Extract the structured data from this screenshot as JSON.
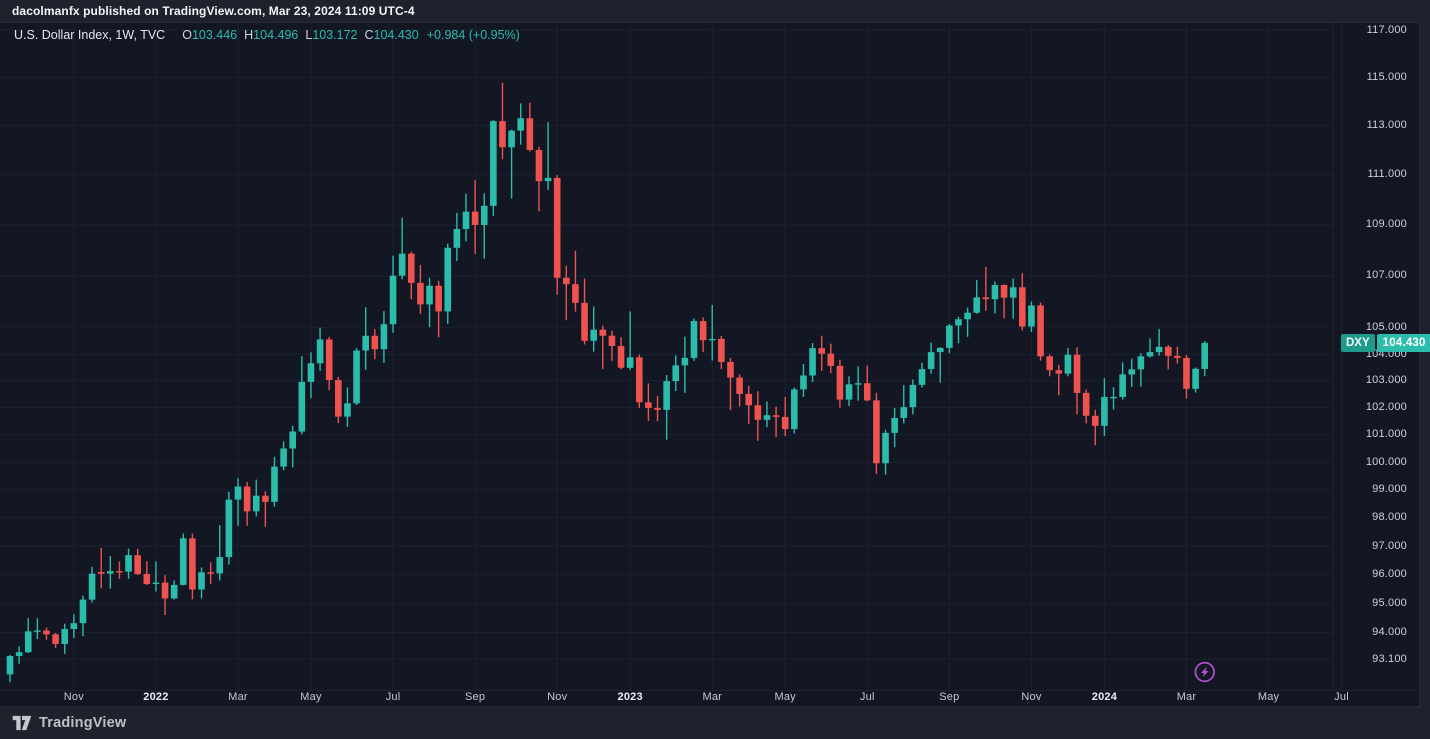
{
  "header": {
    "published_line": "dacolmanfx published on TradingView.com, Mar 23, 2024 11:09 UTC-4"
  },
  "legend": {
    "symbol_title": "U.S. Dollar Index, 1W, TVC",
    "ohlc_items": [
      {
        "label": "O",
        "value": "103.446"
      },
      {
        "label": "H",
        "value": "104.496"
      },
      {
        "label": "L",
        "value": "103.172"
      },
      {
        "label": "C",
        "value": "104.430"
      }
    ],
    "change": "+0.984 (+0.95%)"
  },
  "price_axis": {
    "labels": [
      "117.000",
      "115.000",
      "113.000",
      "111.000",
      "109.000",
      "107.000",
      "105.000",
      "104.000",
      "103.000",
      "102.000",
      "101.000",
      "100.000",
      "99.000",
      "98.000",
      "97.000",
      "96.000",
      "95.000",
      "94.000",
      "93.100"
    ],
    "last_price_label": {
      "symbol": "DXY",
      "value": "104.430"
    }
  },
  "time_axis": {
    "ticks": [
      {
        "label": "Nov",
        "bar": 7,
        "year": false
      },
      {
        "label": "2022",
        "bar": 16,
        "year": true
      },
      {
        "label": "Mar",
        "bar": 25,
        "year": false
      },
      {
        "label": "May",
        "bar": 33,
        "year": false
      },
      {
        "label": "Jul",
        "bar": 42,
        "year": false
      },
      {
        "label": "Sep",
        "bar": 51,
        "year": false
      },
      {
        "label": "Nov",
        "bar": 60,
        "year": false
      },
      {
        "label": "2023",
        "bar": 68,
        "year": true
      },
      {
        "label": "Mar",
        "bar": 77,
        "year": false
      },
      {
        "label": "May",
        "bar": 85,
        "year": false
      },
      {
        "label": "Jul",
        "bar": 94,
        "year": false
      },
      {
        "label": "Sep",
        "bar": 103,
        "year": false
      },
      {
        "label": "Nov",
        "bar": 112,
        "year": false
      },
      {
        "label": "2024",
        "bar": 120,
        "year": true
      },
      {
        "label": "Mar",
        "bar": 129,
        "year": false
      },
      {
        "label": "May",
        "bar": 138,
        "year": false
      },
      {
        "label": "Jul",
        "bar": 146,
        "year": false
      }
    ]
  },
  "footer": {
    "brand": "TradingView"
  },
  "colors": {
    "up": "#2cbcab",
    "down": "#ef5350",
    "accent": "#2cbcab",
    "flash_icon": "#b750d8",
    "grid": "#1b2030"
  },
  "chart_data": {
    "type": "candlestick",
    "title": "U.S. Dollar Index",
    "symbol": "DXY",
    "exchange": "TVC",
    "timeframe": "1W",
    "scale": "logarithmic",
    "grid": true,
    "ylim": [
      92.2,
      117.3
    ],
    "y_ticks": [
      117,
      115,
      113,
      111,
      109,
      107,
      105,
      104,
      103,
      102,
      101,
      100,
      99,
      98,
      97,
      96,
      95,
      94,
      93.1
    ],
    "x_ticks": [
      "Nov 2021",
      "2022",
      "Mar",
      "May",
      "Jul",
      "Sep",
      "Nov",
      "2023",
      "Mar",
      "May",
      "Jul",
      "Sep",
      "Nov",
      "2024",
      "Mar",
      "May",
      "Jul"
    ],
    "last_bar_ohlc": {
      "open": 103.446,
      "high": 104.496,
      "low": 103.172,
      "close": 104.43,
      "change": 0.984,
      "change_pct": 0.95
    },
    "candles": [
      [
        "2021-09-13",
        92.58,
        93.24,
        92.32,
        93.2
      ],
      [
        "2021-09-20",
        93.2,
        93.53,
        92.94,
        93.33
      ],
      [
        "2021-09-27",
        93.33,
        94.5,
        93.3,
        94.04
      ],
      [
        "2021-10-04",
        94.04,
        94.49,
        93.78,
        94.07
      ],
      [
        "2021-10-11",
        94.07,
        94.17,
        93.75,
        93.94
      ],
      [
        "2021-10-18",
        93.94,
        93.99,
        93.48,
        93.61
      ],
      [
        "2021-10-25",
        93.61,
        94.3,
        93.27,
        94.12
      ],
      [
        "2021-11-01",
        94.12,
        94.63,
        93.81,
        94.32
      ],
      [
        "2021-11-08",
        94.32,
        95.27,
        93.87,
        95.13
      ],
      [
        "2021-11-15",
        95.13,
        96.27,
        95.03,
        96.03
      ],
      [
        "2021-11-22",
        96.09,
        96.94,
        95.52,
        96.03
      ],
      [
        "2021-11-29",
        96.03,
        96.65,
        95.51,
        96.12
      ],
      [
        "2021-12-06",
        96.12,
        96.46,
        95.85,
        96.1
      ],
      [
        "2021-12-13",
        96.1,
        96.91,
        95.85,
        96.68
      ],
      [
        "2021-12-20",
        96.68,
        96.9,
        95.98,
        96.02
      ],
      [
        "2021-12-27",
        96.02,
        96.47,
        95.64,
        95.67
      ],
      [
        "2022-01-03",
        95.67,
        96.46,
        95.41,
        95.72
      ],
      [
        "2022-01-10",
        95.72,
        95.98,
        94.6,
        95.17
      ],
      [
        "2022-01-17",
        95.17,
        95.8,
        95.13,
        95.64
      ],
      [
        "2022-01-24",
        95.64,
        97.44,
        95.62,
        97.27
      ],
      [
        "2022-01-31",
        97.27,
        97.44,
        95.14,
        95.48
      ],
      [
        "2022-02-07",
        95.48,
        96.25,
        95.17,
        96.08
      ],
      [
        "2022-02-14",
        96.08,
        96.43,
        95.67,
        96.04
      ],
      [
        "2022-02-21",
        96.04,
        97.74,
        95.8,
        96.61
      ],
      [
        "2022-02-28",
        96.61,
        98.94,
        96.35,
        98.65
      ],
      [
        "2022-03-07",
        98.65,
        99.42,
        97.71,
        99.12
      ],
      [
        "2022-03-14",
        99.12,
        99.29,
        97.72,
        98.23
      ],
      [
        "2022-03-21",
        98.23,
        99.37,
        98.05,
        98.79
      ],
      [
        "2022-03-28",
        98.79,
        98.95,
        97.68,
        98.57
      ],
      [
        "2022-04-04",
        98.57,
        100.19,
        98.4,
        99.84
      ],
      [
        "2022-04-11",
        99.84,
        100.76,
        99.71,
        100.5
      ],
      [
        "2022-04-18",
        100.5,
        101.33,
        99.81,
        101.12
      ],
      [
        "2022-04-25",
        101.12,
        103.93,
        101.02,
        102.96
      ],
      [
        "2022-05-02",
        102.96,
        104.07,
        102.35,
        103.66
      ],
      [
        "2022-05-09",
        103.66,
        105.01,
        103.37,
        104.56
      ],
      [
        "2022-05-16",
        104.56,
        104.66,
        102.65,
        103.03
      ],
      [
        "2022-05-23",
        103.03,
        103.15,
        101.43,
        101.67
      ],
      [
        "2022-05-30",
        101.67,
        102.75,
        101.29,
        102.16
      ],
      [
        "2022-06-06",
        102.16,
        104.23,
        102.1,
        104.14
      ],
      [
        "2022-06-13",
        104.14,
        105.79,
        103.41,
        104.7
      ],
      [
        "2022-06-20",
        104.7,
        104.95,
        103.81,
        104.19
      ],
      [
        "2022-06-27",
        104.19,
        105.64,
        103.67,
        105.14
      ],
      [
        "2022-07-04",
        105.14,
        107.79,
        104.81,
        107.01
      ],
      [
        "2022-07-11",
        107.01,
        109.29,
        106.87,
        107.87
      ],
      [
        "2022-07-18",
        107.87,
        107.95,
        106.1,
        106.73
      ],
      [
        "2022-07-25",
        106.73,
        107.43,
        105.53,
        105.9
      ],
      [
        "2022-08-01",
        105.9,
        106.93,
        105.03,
        106.62
      ],
      [
        "2022-08-08",
        106.62,
        106.81,
        104.64,
        105.63
      ],
      [
        "2022-08-15",
        105.63,
        108.26,
        105.15,
        108.1
      ],
      [
        "2022-08-22",
        108.1,
        109.48,
        107.58,
        108.84
      ],
      [
        "2022-08-29",
        108.84,
        110.25,
        108.35,
        109.53
      ],
      [
        "2022-09-05",
        109.53,
        110.79,
        107.86,
        109.0
      ],
      [
        "2022-09-12",
        109.0,
        110.26,
        107.67,
        109.76
      ],
      [
        "2022-09-19",
        109.76,
        113.23,
        109.36,
        113.19
      ],
      [
        "2022-09-26",
        113.19,
        114.78,
        111.64,
        112.12
      ],
      [
        "2022-10-03",
        112.12,
        112.84,
        110.05,
        112.8
      ],
      [
        "2022-10-10",
        112.8,
        113.92,
        112.23,
        113.31
      ],
      [
        "2022-10-17",
        113.31,
        113.95,
        111.95,
        112.01
      ],
      [
        "2022-10-24",
        112.01,
        112.14,
        109.54,
        110.75
      ],
      [
        "2022-10-31",
        110.75,
        113.15,
        110.4,
        110.88
      ],
      [
        "2022-11-07",
        110.88,
        110.99,
        106.27,
        106.93
      ],
      [
        "2022-11-14",
        106.93,
        107.4,
        105.3,
        106.68
      ],
      [
        "2022-11-21",
        106.68,
        107.99,
        105.62,
        105.96
      ],
      [
        "2022-11-28",
        105.96,
        106.9,
        104.37,
        104.51
      ],
      [
        "2022-12-05",
        104.51,
        105.82,
        104.1,
        104.93
      ],
      [
        "2022-12-12",
        104.93,
        105.09,
        103.44,
        104.7
      ],
      [
        "2022-12-19",
        104.7,
        104.89,
        103.75,
        104.31
      ],
      [
        "2022-12-26",
        104.31,
        104.64,
        103.43,
        103.49
      ],
      [
        "2023-01-02",
        103.49,
        105.63,
        103.41,
        103.88
      ],
      [
        "2023-01-09",
        103.88,
        103.99,
        101.99,
        102.2
      ],
      [
        "2023-01-16",
        102.2,
        102.9,
        101.51,
        101.99
      ],
      [
        "2023-01-23",
        101.99,
        102.43,
        101.5,
        101.92
      ],
      [
        "2023-01-30",
        101.92,
        103.22,
        100.82,
        102.99
      ],
      [
        "2023-02-06",
        102.99,
        103.96,
        102.62,
        103.58
      ],
      [
        "2023-02-13",
        103.58,
        104.67,
        102.55,
        103.86
      ],
      [
        "2023-02-20",
        103.86,
        105.36,
        103.75,
        105.26
      ],
      [
        "2023-02-27",
        105.26,
        105.4,
        104.09,
        104.53
      ],
      [
        "2023-03-06",
        104.53,
        105.88,
        103.76,
        104.58
      ],
      [
        "2023-03-13",
        104.58,
        104.69,
        103.44,
        103.71
      ],
      [
        "2023-03-20",
        103.71,
        103.86,
        101.91,
        103.12
      ],
      [
        "2023-03-27",
        103.12,
        103.24,
        102.04,
        102.51
      ],
      [
        "2023-04-03",
        102.51,
        102.81,
        101.4,
        102.09
      ],
      [
        "2023-04-10",
        102.09,
        102.61,
        100.78,
        101.55
      ],
      [
        "2023-04-17",
        101.55,
        102.23,
        101.28,
        101.72
      ],
      [
        "2023-04-24",
        101.72,
        102.04,
        100.92,
        101.66
      ],
      [
        "2023-05-01",
        101.66,
        102.4,
        100.95,
        101.21
      ],
      [
        "2023-05-08",
        101.21,
        102.75,
        101.05,
        102.68
      ],
      [
        "2023-05-15",
        102.68,
        103.63,
        102.4,
        103.2
      ],
      [
        "2023-05-22",
        103.2,
        104.42,
        102.95,
        104.23
      ],
      [
        "2023-05-29",
        104.23,
        104.7,
        103.37,
        104.02
      ],
      [
        "2023-06-05",
        104.02,
        104.4,
        103.29,
        103.56
      ],
      [
        "2023-06-12",
        103.56,
        103.79,
        102.0,
        102.3
      ],
      [
        "2023-06-19",
        102.3,
        103.17,
        102.06,
        102.87
      ],
      [
        "2023-06-26",
        102.87,
        103.54,
        102.26,
        102.91
      ],
      [
        "2023-07-03",
        102.91,
        103.57,
        102.24,
        102.27
      ],
      [
        "2023-07-10",
        102.27,
        102.55,
        99.57,
        99.96
      ],
      [
        "2023-07-17",
        99.96,
        101.19,
        99.55,
        101.07
      ],
      [
        "2023-07-24",
        101.07,
        101.99,
        100.55,
        101.62
      ],
      [
        "2023-07-31",
        101.62,
        102.84,
        101.42,
        102.02
      ],
      [
        "2023-08-07",
        102.02,
        103.05,
        101.75,
        102.85
      ],
      [
        "2023-08-14",
        102.85,
        103.68,
        102.75,
        103.44
      ],
      [
        "2023-08-21",
        103.44,
        104.44,
        103.27,
        104.08
      ],
      [
        "2023-08-28",
        104.08,
        104.27,
        102.93,
        104.24
      ],
      [
        "2023-09-04",
        104.24,
        105.15,
        104.04,
        105.09
      ],
      [
        "2023-09-11",
        105.09,
        105.43,
        104.42,
        105.33
      ],
      [
        "2023-09-18",
        105.33,
        105.78,
        104.66,
        105.58
      ],
      [
        "2023-09-25",
        105.58,
        106.84,
        105.54,
        106.17
      ],
      [
        "2023-10-02",
        106.17,
        107.35,
        105.65,
        106.1
      ],
      [
        "2023-10-09",
        106.1,
        106.79,
        105.55,
        106.65
      ],
      [
        "2023-10-16",
        106.65,
        106.67,
        105.36,
        106.16
      ],
      [
        "2023-10-23",
        106.16,
        106.9,
        105.35,
        106.56
      ],
      [
        "2023-10-30",
        106.56,
        107.11,
        104.9,
        105.05
      ],
      [
        "2023-11-06",
        105.05,
        106.01,
        104.84,
        105.86
      ],
      [
        "2023-11-13",
        105.86,
        105.97,
        103.76,
        103.92
      ],
      [
        "2023-11-20",
        103.92,
        103.99,
        103.17,
        103.4
      ],
      [
        "2023-11-27",
        103.4,
        103.6,
        102.46,
        103.27
      ],
      [
        "2023-12-04",
        103.27,
        104.23,
        103.17,
        103.98
      ],
      [
        "2023-12-11",
        103.98,
        104.26,
        101.76,
        102.55
      ],
      [
        "2023-12-18",
        102.55,
        102.67,
        101.42,
        101.7
      ],
      [
        "2023-12-25",
        101.7,
        101.92,
        100.62,
        101.33
      ],
      [
        "2024-01-01",
        101.33,
        103.1,
        100.96,
        102.4
      ],
      [
        "2024-01-08",
        102.4,
        102.76,
        101.93,
        102.4
      ],
      [
        "2024-01-15",
        102.4,
        103.69,
        102.3,
        103.24
      ],
      [
        "2024-01-22",
        103.24,
        103.83,
        102.77,
        103.43
      ],
      [
        "2024-01-29",
        103.43,
        104.04,
        102.78,
        103.92
      ],
      [
        "2024-02-05",
        103.92,
        104.6,
        103.87,
        104.08
      ],
      [
        "2024-02-12",
        104.08,
        104.96,
        103.95,
        104.28
      ],
      [
        "2024-02-19",
        104.28,
        104.35,
        103.43,
        103.94
      ],
      [
        "2024-02-26",
        103.94,
        104.29,
        103.65,
        103.86
      ],
      [
        "2024-03-04",
        103.86,
        103.97,
        102.33,
        102.7
      ],
      [
        "2024-03-11",
        102.7,
        103.5,
        102.56,
        103.45
      ],
      [
        "2024-03-18",
        103.446,
        104.496,
        103.172,
        104.43
      ]
    ]
  }
}
